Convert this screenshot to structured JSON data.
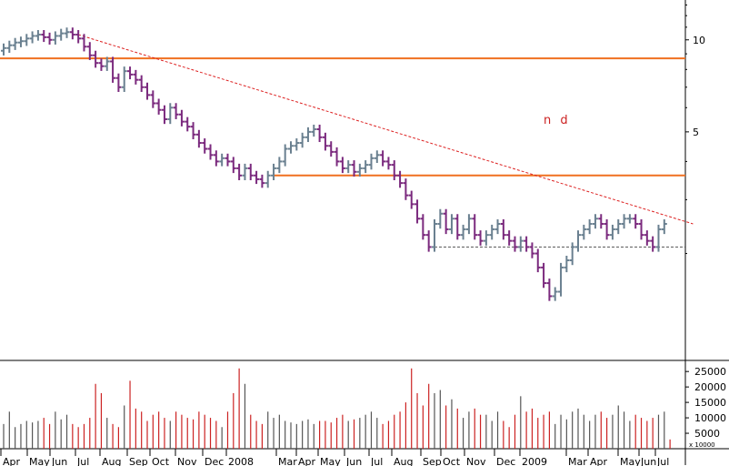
{
  "chart_data": [
    {
      "type": "ohlc",
      "scale": "log",
      "annotation": "n d",
      "colors": {
        "up": "#6a8090",
        "down": "#7b2a7e",
        "resistance": "#f07020",
        "trend": "#dd2222",
        "support": "#555555"
      },
      "y_ticks": [
        5,
        10
      ],
      "y_range": [
        0.9,
        13.5
      ],
      "x_labels": [
        "Apr",
        "May",
        "Jun",
        "Jul",
        "Aug",
        "Sep",
        "Oct",
        "Nov",
        "Dec",
        "2008",
        "Mar",
        "Apr",
        "May",
        "Jun",
        "Jul",
        "Aug",
        "Sep",
        "Oct",
        "Nov",
        "Dec",
        "2009",
        "Mar",
        "Apr",
        "May",
        "Jun",
        "Jul"
      ],
      "horizontal_levels": [
        {
          "kind": "resistance",
          "value": 8.7,
          "from_week": 0,
          "to_week": 120
        },
        {
          "kind": "resistance",
          "value": 3.6,
          "from_week": 47,
          "to_week": 120
        },
        {
          "kind": "support",
          "value": 2.1,
          "from_week": 75,
          "to_week": 120
        }
      ],
      "trendline": {
        "start_week": 13,
        "start_value": 10.4,
        "end_week": 120,
        "end_value": 2.5
      },
      "weekly_close": [
        9.4,
        9.6,
        9.8,
        9.9,
        10.1,
        10.3,
        10.4,
        10.2,
        10.0,
        10.3,
        10.5,
        10.6,
        10.4,
        10.1,
        9.5,
        8.9,
        8.4,
        8.2,
        8.5,
        7.5,
        7.0,
        7.9,
        7.7,
        7.4,
        7.0,
        6.6,
        6.2,
        5.9,
        5.5,
        6.0,
        5.7,
        5.4,
        5.2,
        4.9,
        4.6,
        4.4,
        4.2,
        4.0,
        4.1,
        4.0,
        3.8,
        3.6,
        3.8,
        3.6,
        3.5,
        3.4,
        3.6,
        3.8,
        4.0,
        4.4,
        4.5,
        4.6,
        4.8,
        5.0,
        5.1,
        4.8,
        4.5,
        4.3,
        4.0,
        3.8,
        3.9,
        3.7,
        3.8,
        3.9,
        4.1,
        4.2,
        4.0,
        3.9,
        3.6,
        3.4,
        3.1,
        2.9,
        2.6,
        2.3,
        2.1,
        2.5,
        2.7,
        2.4,
        2.6,
        2.3,
        2.4,
        2.6,
        2.3,
        2.2,
        2.3,
        2.4,
        2.5,
        2.3,
        2.2,
        2.1,
        2.2,
        2.1,
        2.0,
        1.8,
        1.6,
        1.45,
        1.5,
        1.8,
        1.9,
        2.1,
        2.3,
        2.4,
        2.5,
        2.6,
        2.5,
        2.3,
        2.4,
        2.5,
        2.6,
        2.6,
        2.5,
        2.3,
        2.2,
        2.1,
        2.4,
        2.5
      ],
      "volume_axis": {
        "ticks": [
          5000,
          10000,
          15000,
          20000,
          25000
        ],
        "max": 28000,
        "unit_label": "x 10000"
      },
      "weekly_volume": [
        8000,
        12000,
        7000,
        8000,
        9000,
        8500,
        9000,
        10000,
        8000,
        12000,
        9500,
        11000,
        8000,
        7000,
        8000,
        10000,
        21000,
        18000,
        10000,
        8000,
        7000,
        14000,
        22000,
        13000,
        12000,
        9000,
        11000,
        12000,
        10000,
        9000,
        12000,
        11000,
        10000,
        9500,
        12000,
        11000,
        10000,
        9000,
        7000,
        12000,
        18000,
        26000,
        21000,
        11000,
        9000,
        8000,
        12000,
        10000,
        11000,
        9000,
        8500,
        8000,
        9000,
        9500,
        8000,
        9000,
        9000,
        8500,
        10000,
        11000,
        9000,
        9500,
        10000,
        11000,
        12000,
        10000,
        8000,
        9000,
        11000,
        12000,
        15000,
        26000,
        18000,
        14000,
        21000,
        18000,
        19000,
        14000,
        16000,
        13000,
        10000,
        12000,
        13000,
        11000,
        11000,
        9000,
        12000,
        9000,
        7000,
        11000,
        17000,
        12000,
        13000,
        10000,
        11000,
        12000,
        8000,
        11000,
        9500,
        12000,
        13000,
        11000,
        9000,
        11000,
        12000,
        10000,
        11000,
        14000,
        12000,
        9000,
        11000,
        10000,
        9000,
        10000,
        11000,
        12000,
        3000
      ]
    }
  ]
}
